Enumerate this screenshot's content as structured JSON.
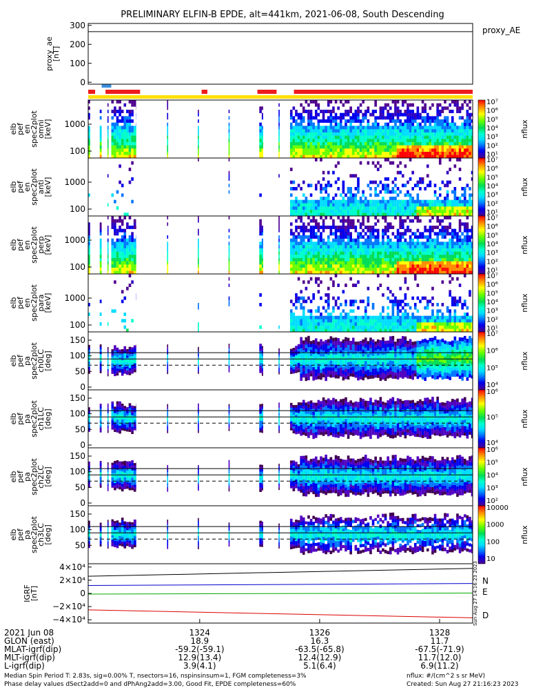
{
  "title": "PRELIMINARY ELFIN-B EPDE, alt=441km, 2021-06-08, South Descending",
  "proxy_ae": {
    "ylabel": [
      "proxy_ae",
      "[nT]"
    ],
    "yticks": [
      "300",
      "200",
      "100",
      "0"
    ],
    "tick_values": [
      300,
      200,
      100,
      0
    ],
    "ylim": [
      -10,
      310
    ],
    "legend": "proxy_AE",
    "value": 267
  },
  "status_bars": {
    "blue_segments": [
      [
        0.035,
        0.06
      ]
    ],
    "red_segments": [
      [
        0.0,
        0.018
      ],
      [
        0.045,
        0.135
      ],
      [
        0.295,
        0.31
      ],
      [
        0.44,
        0.49
      ],
      [
        0.535,
        1.0
      ]
    ],
    "yellow": [
      0.0,
      1.0
    ],
    "colors": {
      "blue": "#3a8fe0",
      "red": "#ee1c1c",
      "yellow": "#ffe000"
    }
  },
  "en_panels": [
    {
      "ylabel": [
        "elb",
        "pef",
        "en",
        "spec2plot",
        "omni",
        "[keV]"
      ],
      "yticks": [
        "1000",
        "100"
      ],
      "density": "dense",
      "cbar_labels": [
        "10⁷",
        "10⁶",
        "10⁵",
        "10⁴",
        "10³",
        "10²",
        "10¹"
      ],
      "cbar_title": "nflux"
    },
    {
      "ylabel": [
        "elb",
        "pef",
        "en",
        "spec2plot",
        "anti",
        "[keV]"
      ],
      "yticks": [
        "1000",
        "100"
      ],
      "density": "sparse",
      "cbar_labels": [
        "10⁷",
        "10⁶",
        "10⁵",
        "10⁴",
        "10³",
        "10²",
        "10¹"
      ],
      "cbar_title": "nflux"
    },
    {
      "ylabel": [
        "elb",
        "pef",
        "en",
        "spec2plot",
        "perp",
        "[keV]"
      ],
      "yticks": [
        "1000",
        "100"
      ],
      "density": "dense",
      "cbar_labels": [
        "10⁷",
        "10⁶",
        "10⁵",
        "10⁴",
        "10³",
        "10²",
        "10¹"
      ],
      "cbar_title": "nflux"
    },
    {
      "ylabel": [
        "elb",
        "pef",
        "en",
        "spec2plot",
        "para",
        "[keV]"
      ],
      "yticks": [
        "1000",
        "100"
      ],
      "density": "sparse",
      "cbar_labels": [
        "10⁷",
        "10⁶",
        "10⁵",
        "10⁴",
        "10³",
        "10²",
        "10¹"
      ],
      "cbar_title": "nflux"
    }
  ],
  "pa_panels": [
    {
      "ylabel": [
        "elb",
        "pef",
        "pa",
        "spec2plot",
        "ch0LC",
        "[deg]"
      ],
      "yticks": [
        "150",
        "100",
        "50",
        "0"
      ],
      "cbar_labels": [
        "10⁷",
        "10⁶",
        "10⁵",
        "10⁴"
      ],
      "cbar_title": "nflux"
    },
    {
      "ylabel": [
        "elb",
        "pef",
        "pa",
        "spec2plot",
        "ch1LC",
        "[deg]"
      ],
      "yticks": [
        "150",
        "100",
        "50",
        "0"
      ],
      "cbar_labels": [
        "10⁶",
        "10⁵",
        "10⁴"
      ],
      "cbar_title": "nflux"
    },
    {
      "ylabel": [
        "elb",
        "pef",
        "pa",
        "spec2plot",
        "ch2LC",
        "[deg]"
      ],
      "yticks": [
        "150",
        "100",
        "50",
        "0"
      ],
      "cbar_labels": [
        "10⁶",
        "10⁵",
        "10⁴",
        "10³",
        "10²"
      ],
      "cbar_title": "nflux"
    },
    {
      "ylabel": [
        "elb",
        "pef",
        "pa",
        "spec2plot",
        "ch3LC",
        "[deg]"
      ],
      "yticks": [
        "150",
        "100",
        "50"
      ],
      "cbar_labels": [
        "10000",
        "1000",
        "100",
        "10"
      ],
      "cbar_title": "nflux"
    }
  ],
  "igrf": {
    "ylabel": [
      "IGRF",
      "[nT]"
    ],
    "yticks": [
      "4×10⁴",
      "2×10⁴",
      "0",
      "−2×10⁴",
      "−4×10⁴"
    ],
    "tick_values": [
      40000,
      20000,
      0,
      -20000,
      -40000
    ],
    "ylim": [
      -45000,
      45000
    ],
    "legend": [
      "N",
      "E",
      "D"
    ],
    "series": [
      {
        "name": "N",
        "color": "#0000cc",
        "start": 12000,
        "end": 15000
      },
      {
        "name": "E",
        "color": "#00aa00",
        "start": -1000,
        "end": 500
      },
      {
        "name": "D",
        "color": "#dd0000",
        "start": -25000,
        "end": -37000
      },
      {
        "name": "",
        "color": "#000000",
        "start": 26000,
        "end": 38000
      }
    ],
    "side_text": "Sun Aug 27 14:16:23 2023"
  },
  "xaxis": {
    "ticks": [
      {
        "frac": 0.29,
        "time": "1324",
        "glon": "18.9",
        "mlat": "-59.2(-59.1)",
        "mlt": "12.9(13.4)",
        "l": "3.9(4.1)"
      },
      {
        "frac": 0.602,
        "time": "1326",
        "glon": "16.3",
        "mlat": "-63.5(-65.8)",
        "mlt": "12.4(12.9)",
        "l": "5.1(6.4)"
      },
      {
        "frac": 0.914,
        "time": "1328",
        "glon": "11.7",
        "mlat": "-67.5(-71.9)",
        "mlt": "11.7(12.0)",
        "l": "6.9(11.2)"
      }
    ],
    "row_labels": [
      "2021 Jun 08",
      "GLON (east)",
      "MLAT-igrf(dip)",
      "MLT-igrf(dip)",
      "L-igrf(dip)"
    ]
  },
  "footer": {
    "line1": "Median Spin Period T: 2.83s, sig=0.00% T, nsectors=16, nspinsinsum=1, FGM completeness=3%",
    "line2": "Phase delay values dSect2add=0 and dPhAng2add=3.00, Good Fit, EPDE completeness=60%",
    "units": "nflux: #/(cm^2 s sr MeV)",
    "created": "Created: Sun Aug 27 21:16:23 2023"
  },
  "colors": {
    "cbar": [
      "#ff0000",
      "#ff8c00",
      "#ffff00",
      "#7fff00",
      "#00dd00",
      "#00ffaa",
      "#00ffff",
      "#0080ff",
      "#0000ff",
      "#5000c0",
      "#400050"
    ]
  }
}
